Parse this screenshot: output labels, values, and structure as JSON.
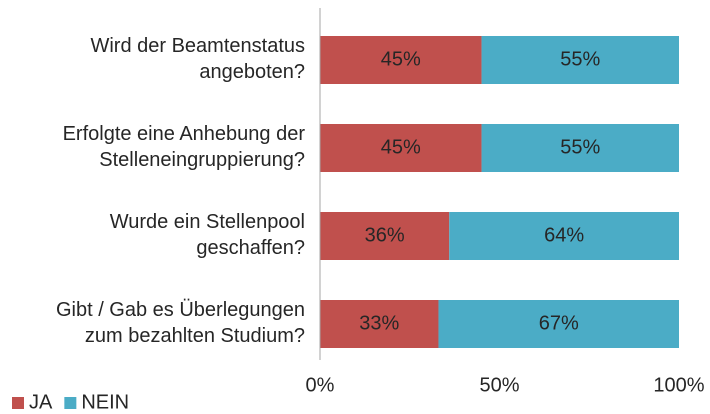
{
  "chart_data": {
    "type": "stacked-bar-horizontal",
    "categories": [
      "Wird der Beamtenstatus\nangeboten?",
      "Erfolgte eine Anhebung der\nStelleneingruppierung?",
      "Wurde ein Stellenpool\ngeschaffen?",
      "Gibt / Gab es Überlegungen\nzum bezahlten Studium?"
    ],
    "series": [
      {
        "name": "JA",
        "color": "#c0504d",
        "values": [
          45,
          45,
          36,
          33
        ],
        "value_labels": [
          "45%",
          "45%",
          "36%",
          "33%"
        ]
      },
      {
        "name": "NEIN",
        "color": "#4bacc6",
        "values": [
          55,
          55,
          64,
          67
        ],
        "value_labels": [
          "55%",
          "55%",
          "64%",
          "67%"
        ]
      }
    ],
    "xlim": [
      0,
      100
    ],
    "xticks": [
      {
        "value": 0,
        "label": "0%"
      },
      {
        "value": 50,
        "label": "50%"
      },
      {
        "value": 100,
        "label": "100%"
      }
    ],
    "legend": "bottom-left",
    "grid": false
  }
}
